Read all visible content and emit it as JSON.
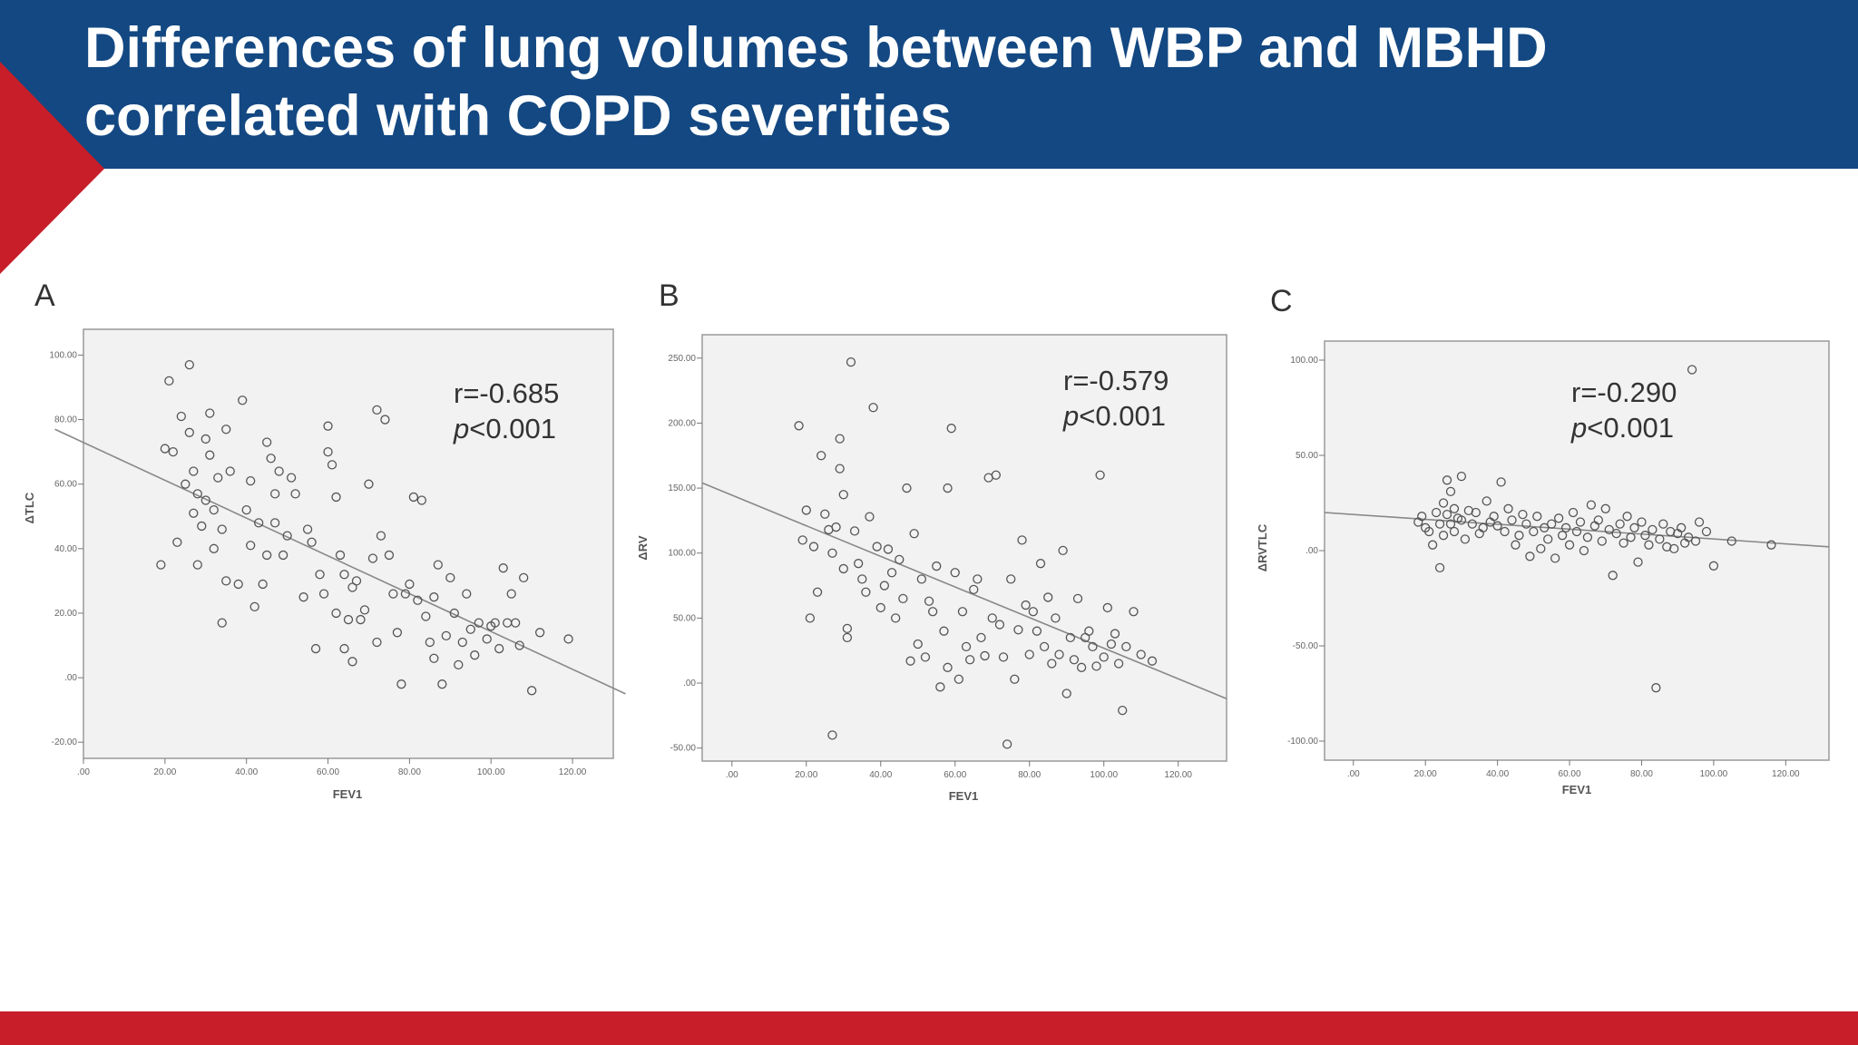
{
  "slide": {
    "title_line1": "Differences of lung volumes between WBP and MBHD",
    "title_line2": "correlated with COPD severities",
    "colors": {
      "header": "#134882",
      "accent_red": "#c71e29",
      "plot_bg": "#f2f2f2"
    }
  },
  "chart_data": [
    {
      "panel": "A",
      "type": "scatter",
      "xlabel": "FEV1",
      "ylabel": "ΔTLC",
      "xlim": [
        0,
        130
      ],
      "ylim": [
        -25,
        108
      ],
      "xticks": [
        0,
        20,
        40,
        60,
        80,
        100,
        120
      ],
      "xtick_labels": [
        ".00",
        "20.00",
        "40.00",
        "60.00",
        "80.00",
        "100.00",
        "120.00"
      ],
      "yticks": [
        -20,
        0,
        20,
        40,
        60,
        80,
        100
      ],
      "ytick_labels": [
        "-20.00",
        ".00",
        "20.00",
        "40.00",
        "60.00",
        "80.00",
        "100.00"
      ],
      "annotation_r": "r=-0.685",
      "annotation_p": "p<0.001",
      "fit_line": {
        "x": [
          -7,
          133
        ],
        "y": [
          77,
          -5
        ]
      },
      "points": [
        [
          19,
          35
        ],
        [
          20,
          71
        ],
        [
          21,
          92
        ],
        [
          22,
          70
        ],
        [
          23,
          42
        ],
        [
          24,
          81
        ],
        [
          25,
          60
        ],
        [
          26,
          76
        ],
        [
          26,
          97
        ],
        [
          27,
          51
        ],
        [
          27,
          64
        ],
        [
          28,
          57
        ],
        [
          28,
          35
        ],
        [
          29,
          47
        ],
        [
          30,
          55
        ],
        [
          30,
          74
        ],
        [
          31,
          82
        ],
        [
          31,
          69
        ],
        [
          32,
          52
        ],
        [
          32,
          40
        ],
        [
          33,
          62
        ],
        [
          34,
          46
        ],
        [
          34,
          17
        ],
        [
          35,
          77
        ],
        [
          35,
          30
        ],
        [
          36,
          64
        ],
        [
          38,
          29
        ],
        [
          39,
          86
        ],
        [
          40,
          52
        ],
        [
          41,
          61
        ],
        [
          41,
          41
        ],
        [
          42,
          22
        ],
        [
          43,
          48
        ],
        [
          44,
          29
        ],
        [
          45,
          73
        ],
        [
          45,
          38
        ],
        [
          46,
          68
        ],
        [
          47,
          57
        ],
        [
          47,
          48
        ],
        [
          48,
          64
        ],
        [
          49,
          38
        ],
        [
          50,
          44
        ],
        [
          51,
          62
        ],
        [
          52,
          57
        ],
        [
          54,
          25
        ],
        [
          55,
          46
        ],
        [
          56,
          42
        ],
        [
          57,
          9
        ],
        [
          58,
          32
        ],
        [
          59,
          26
        ],
        [
          60,
          78
        ],
        [
          60,
          70
        ],
        [
          61,
          66
        ],
        [
          62,
          56
        ],
        [
          62,
          20
        ],
        [
          63,
          38
        ],
        [
          64,
          9
        ],
        [
          64,
          32
        ],
        [
          65,
          18
        ],
        [
          66,
          5
        ],
        [
          66,
          28
        ],
        [
          67,
          30
        ],
        [
          68,
          18
        ],
        [
          69,
          21
        ],
        [
          70,
          60
        ],
        [
          71,
          37
        ],
        [
          72,
          11
        ],
        [
          72,
          83
        ],
        [
          73,
          44
        ],
        [
          74,
          80
        ],
        [
          75,
          38
        ],
        [
          76,
          26
        ],
        [
          77,
          14
        ],
        [
          78,
          -2
        ],
        [
          79,
          26
        ],
        [
          80,
          29
        ],
        [
          81,
          56
        ],
        [
          82,
          24
        ],
        [
          83,
          55
        ],
        [
          84,
          19
        ],
        [
          85,
          11
        ],
        [
          86,
          25
        ],
        [
          86,
          6
        ],
        [
          87,
          35
        ],
        [
          88,
          -2
        ],
        [
          89,
          13
        ],
        [
          90,
          31
        ],
        [
          91,
          20
        ],
        [
          92,
          4
        ],
        [
          93,
          11
        ],
        [
          94,
          26
        ],
        [
          95,
          15
        ],
        [
          96,
          7
        ],
        [
          97,
          17
        ],
        [
          99,
          12
        ],
        [
          100,
          16
        ],
        [
          101,
          17
        ],
        [
          102,
          9
        ],
        [
          103,
          34
        ],
        [
          104,
          17
        ],
        [
          105,
          26
        ],
        [
          106,
          17
        ],
        [
          107,
          10
        ],
        [
          108,
          31
        ],
        [
          110,
          -4
        ],
        [
          112,
          14
        ],
        [
          119,
          12
        ]
      ]
    },
    {
      "panel": "B",
      "type": "scatter",
      "xlabel": "FEV1",
      "ylabel": "ΔRV",
      "xlim": [
        -8,
        133
      ],
      "ylim": [
        -60,
        268
      ],
      "xticks": [
        0,
        20,
        40,
        60,
        80,
        100,
        120
      ],
      "xtick_labels": [
        ".00",
        "20.00",
        "40.00",
        "60.00",
        "80.00",
        "100.00",
        "120.00"
      ],
      "yticks": [
        -50,
        0,
        50,
        100,
        150,
        200,
        250
      ],
      "ytick_labels": [
        "-50.00",
        ".00",
        "50.00",
        "100.00",
        "150.00",
        "200.00",
        "250.00"
      ],
      "annotation_r": "r=-0.579",
      "annotation_p": "p<0.001",
      "fit_line": {
        "x": [
          -8,
          133
        ],
        "y": [
          154,
          -12
        ]
      },
      "points": [
        [
          18,
          198
        ],
        [
          19,
          110
        ],
        [
          20,
          133
        ],
        [
          21,
          50
        ],
        [
          22,
          105
        ],
        [
          23,
          70
        ],
        [
          24,
          175
        ],
        [
          25,
          130
        ],
        [
          26,
          118
        ],
        [
          27,
          -40
        ],
        [
          27,
          100
        ],
        [
          28,
          120
        ],
        [
          29,
          165
        ],
        [
          29,
          188
        ],
        [
          30,
          145
        ],
        [
          30,
          88
        ],
        [
          31,
          42
        ],
        [
          31,
          35
        ],
        [
          32,
          247
        ],
        [
          33,
          117
        ],
        [
          34,
          92
        ],
        [
          35,
          80
        ],
        [
          36,
          70
        ],
        [
          37,
          128
        ],
        [
          38,
          212
        ],
        [
          39,
          105
        ],
        [
          40,
          58
        ],
        [
          41,
          75
        ],
        [
          42,
          103
        ],
        [
          43,
          85
        ],
        [
          44,
          50
        ],
        [
          45,
          95
        ],
        [
          46,
          65
        ],
        [
          47,
          150
        ],
        [
          48,
          17
        ],
        [
          49,
          115
        ],
        [
          50,
          30
        ],
        [
          51,
          80
        ],
        [
          52,
          20
        ],
        [
          53,
          63
        ],
        [
          54,
          55
        ],
        [
          55,
          90
        ],
        [
          56,
          -3
        ],
        [
          57,
          40
        ],
        [
          58,
          12
        ],
        [
          58,
          150
        ],
        [
          59,
          196
        ],
        [
          60,
          85
        ],
        [
          61,
          3
        ],
        [
          62,
          55
        ],
        [
          63,
          28
        ],
        [
          64,
          18
        ],
        [
          65,
          72
        ],
        [
          66,
          80
        ],
        [
          67,
          35
        ],
        [
          68,
          21
        ],
        [
          69,
          158
        ],
        [
          70,
          50
        ],
        [
          71,
          160
        ],
        [
          72,
          45
        ],
        [
          73,
          20
        ],
        [
          74,
          -47
        ],
        [
          75,
          80
        ],
        [
          76,
          3
        ],
        [
          77,
          41
        ],
        [
          78,
          110
        ],
        [
          79,
          60
        ],
        [
          80,
          22
        ],
        [
          81,
          55
        ],
        [
          82,
          40
        ],
        [
          83,
          92
        ],
        [
          84,
          28
        ],
        [
          85,
          66
        ],
        [
          86,
          15
        ],
        [
          87,
          50
        ],
        [
          88,
          22
        ],
        [
          89,
          102
        ],
        [
          90,
          -8
        ],
        [
          91,
          35
        ],
        [
          92,
          18
        ],
        [
          93,
          65
        ],
        [
          94,
          12
        ],
        [
          95,
          35
        ],
        [
          96,
          40
        ],
        [
          97,
          28
        ],
        [
          98,
          13
        ],
        [
          99,
          160
        ],
        [
          100,
          20
        ],
        [
          101,
          58
        ],
        [
          102,
          30
        ],
        [
          103,
          38
        ],
        [
          104,
          15
        ],
        [
          105,
          -21
        ],
        [
          106,
          28
        ],
        [
          108,
          55
        ],
        [
          110,
          22
        ],
        [
          113,
          17
        ]
      ]
    },
    {
      "panel": "C",
      "type": "scatter",
      "xlabel": "FEV1",
      "ylabel": "ΔRVTLC",
      "xlim": [
        -8,
        132
      ],
      "ylim": [
        -110,
        110
      ],
      "xticks": [
        0,
        20,
        40,
        60,
        80,
        100,
        120
      ],
      "xtick_labels": [
        ".00",
        "20.00",
        "40.00",
        "60.00",
        "80.00",
        "100.00",
        "120.00"
      ],
      "yticks": [
        -100,
        -50,
        0,
        50,
        100
      ],
      "ytick_labels": [
        "-100.00",
        "-50.00",
        ".00",
        "50.00",
        "100.00"
      ],
      "annotation_r": "r=-0.290",
      "annotation_p": "p<0.001",
      "fit_line": {
        "x": [
          -8,
          132
        ],
        "y": [
          20,
          2
        ]
      },
      "points": [
        [
          18,
          15
        ],
        [
          19,
          18
        ],
        [
          20,
          12
        ],
        [
          21,
          10
        ],
        [
          22,
          3
        ],
        [
          23,
          20
        ],
        [
          24,
          14
        ],
        [
          24,
          -9
        ],
        [
          25,
          25
        ],
        [
          25,
          8
        ],
        [
          26,
          19
        ],
        [
          26,
          37
        ],
        [
          27,
          31
        ],
        [
          27,
          14
        ],
        [
          28,
          10
        ],
        [
          28,
          22
        ],
        [
          29,
          17
        ],
        [
          30,
          16
        ],
        [
          30,
          39
        ],
        [
          31,
          6
        ],
        [
          32,
          21
        ],
        [
          33,
          14
        ],
        [
          34,
          20
        ],
        [
          35,
          9
        ],
        [
          36,
          12
        ],
        [
          37,
          26
        ],
        [
          38,
          15
        ],
        [
          39,
          18
        ],
        [
          40,
          13
        ],
        [
          41,
          36
        ],
        [
          42,
          10
        ],
        [
          43,
          22
        ],
        [
          44,
          16
        ],
        [
          45,
          3
        ],
        [
          46,
          8
        ],
        [
          47,
          19
        ],
        [
          48,
          14
        ],
        [
          49,
          -3
        ],
        [
          50,
          10
        ],
        [
          51,
          18
        ],
        [
          52,
          1
        ],
        [
          53,
          12
        ],
        [
          54,
          6
        ],
        [
          55,
          14
        ],
        [
          56,
          -4
        ],
        [
          57,
          17
        ],
        [
          58,
          8
        ],
        [
          59,
          12
        ],
        [
          60,
          3
        ],
        [
          61,
          20
        ],
        [
          62,
          10
        ],
        [
          63,
          15
        ],
        [
          64,
          0
        ],
        [
          65,
          7
        ],
        [
          66,
          24
        ],
        [
          67,
          13
        ],
        [
          68,
          16
        ],
        [
          69,
          5
        ],
        [
          70,
          22
        ],
        [
          71,
          11
        ],
        [
          72,
          -13
        ],
        [
          73,
          9
        ],
        [
          74,
          14
        ],
        [
          75,
          4
        ],
        [
          76,
          18
        ],
        [
          77,
          7
        ],
        [
          78,
          12
        ],
        [
          79,
          -6
        ],
        [
          80,
          15
        ],
        [
          81,
          8
        ],
        [
          82,
          3
        ],
        [
          83,
          11
        ],
        [
          84,
          -72
        ],
        [
          85,
          6
        ],
        [
          86,
          14
        ],
        [
          87,
          2
        ],
        [
          88,
          10
        ],
        [
          89,
          1
        ],
        [
          90,
          9
        ],
        [
          91,
          12
        ],
        [
          92,
          4
        ],
        [
          93,
          7
        ],
        [
          94,
          95
        ],
        [
          95,
          5
        ],
        [
          96,
          15
        ],
        [
          98,
          10
        ],
        [
          100,
          -8
        ],
        [
          105,
          5
        ],
        [
          116,
          3
        ]
      ]
    }
  ]
}
